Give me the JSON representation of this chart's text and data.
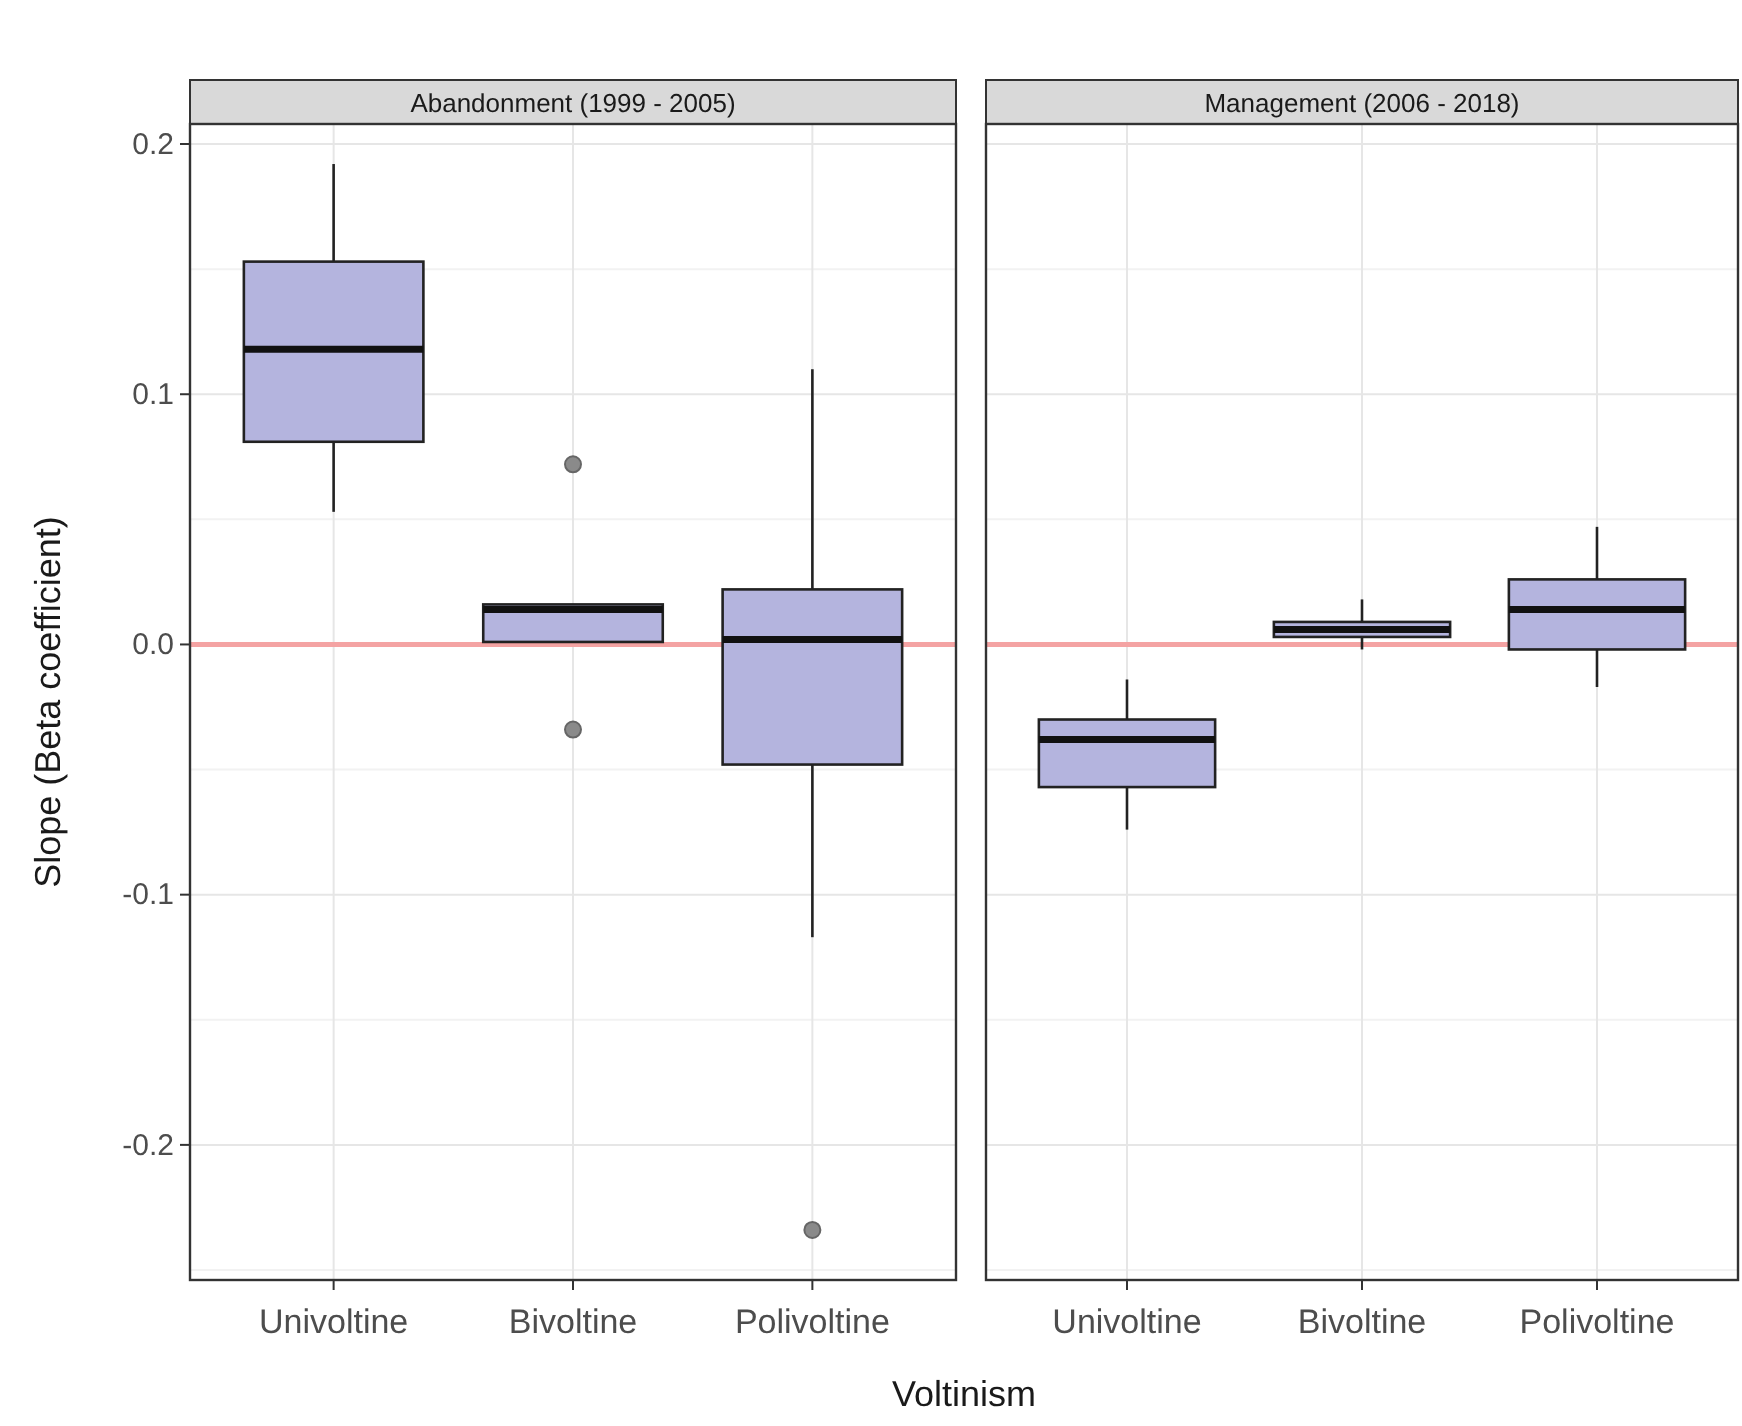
{
  "chart_data": [
    {
      "type": "box",
      "title": "Abandonment (1999 - 2005)",
      "xlabel": "Voltinism",
      "ylabel": "Slope (Beta coefficient)",
      "categories": [
        "Univoltine",
        "Bivoltine",
        "Polivoltine"
      ],
      "color": "#b4b4de",
      "boxes": [
        {
          "low": 0.053,
          "q1": 0.081,
          "median": 0.118,
          "q3": 0.153,
          "high": 0.192
        },
        {
          "low": 0.001,
          "q1": 0.001,
          "median": 0.014,
          "q3": 0.016,
          "high": 0.016,
          "outliers": [
            0.072,
            -0.034
          ]
        },
        {
          "low": -0.117,
          "q1": -0.048,
          "median": 0.002,
          "q3": 0.022,
          "high": 0.11,
          "outliers": [
            -0.234
          ]
        }
      ],
      "ylim": [
        -0.254,
        0.208
      ],
      "yticks": [
        {
          "value": -0.2,
          "label": "-0.2"
        },
        {
          "value": -0.1,
          "label": "-0.1"
        },
        {
          "value": 0,
          "label": "0.0"
        },
        {
          "value": 0.1,
          "label": "0.1"
        },
        {
          "value": 0.2,
          "label": "0.2"
        }
      ],
      "grid": true,
      "ref_lines": [
        {
          "axis": "y",
          "value": 0,
          "color": "#f4a3a3"
        }
      ]
    },
    {
      "type": "box",
      "title": "Management (2006 - 2018)",
      "categories": [
        "Univoltine",
        "Bivoltine",
        "Polivoltine"
      ],
      "color": "#b4b4de",
      "boxes": [
        {
          "low": -0.074,
          "q1": -0.057,
          "median": -0.038,
          "q3": -0.03,
          "high": -0.014
        },
        {
          "low": -0.002,
          "q1": 0.003,
          "median": 0.006,
          "q3": 0.009,
          "high": 0.018
        },
        {
          "low": -0.017,
          "q1": -0.002,
          "median": 0.014,
          "q3": 0.026,
          "high": 0.047
        }
      ],
      "ylim": [
        -0.254,
        0.208
      ],
      "yticks": [
        -0.2,
        -0.1,
        0,
        0.1,
        0.2
      ],
      "grid": true,
      "tick_labels": "x",
      "ref_lines": [
        {
          "axis": "y",
          "value": 0,
          "color": "#f4a3a3"
        }
      ]
    }
  ]
}
